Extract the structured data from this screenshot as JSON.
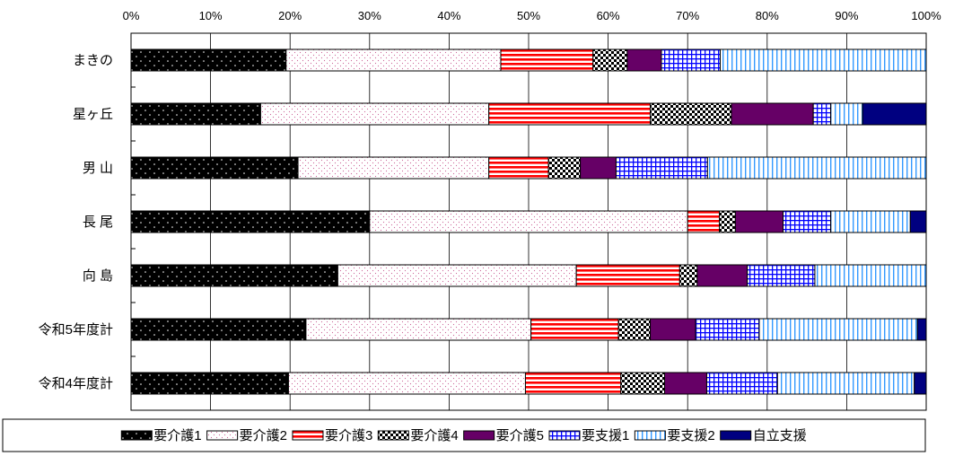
{
  "chart_data": {
    "type": "bar",
    "orientation": "horizontal",
    "stacked": "percent",
    "categories": [
      "まきの",
      "星ヶ丘",
      "男 山",
      "長 尾",
      "向 島",
      "令和5年度計",
      "令和4年度計"
    ],
    "x_ticks": [
      "0%",
      "10%",
      "20%",
      "30%",
      "40%",
      "50%",
      "60%",
      "70%",
      "80%",
      "90%",
      "100%"
    ],
    "xlim": [
      0,
      100
    ],
    "grid": true,
    "legend_position": "bottom",
    "series": [
      {
        "name": "要介護1",
        "pattern": "dots-on-black",
        "color": "#000000",
        "values": [
          19.5,
          16.3,
          21.0,
          30.0,
          26.0,
          22.0,
          19.8
        ]
      },
      {
        "name": "要介護2",
        "pattern": "fine-dots",
        "color": "#ffffff",
        "values": [
          27.0,
          28.7,
          24.0,
          40.0,
          30.0,
          28.3,
          29.8
        ]
      },
      {
        "name": "要介護3",
        "pattern": "horizontal-stripes",
        "color": "#ff0000",
        "values": [
          11.6,
          20.3,
          7.5,
          4.0,
          13.0,
          11.0,
          12.0
        ]
      },
      {
        "name": "要介護4",
        "pattern": "checker",
        "color": "#000000",
        "values": [
          4.3,
          10.2,
          4.0,
          2.0,
          2.2,
          4.0,
          5.5
        ]
      },
      {
        "name": "要介護5",
        "pattern": "solid",
        "color": "#660066",
        "values": [
          4.3,
          10.3,
          4.5,
          6.0,
          6.3,
          5.7,
          5.3
        ]
      },
      {
        "name": "要支援1",
        "pattern": "grid",
        "color": "#0000ff",
        "values": [
          7.4,
          2.2,
          11.5,
          6.0,
          8.5,
          8.0,
          8.9
        ]
      },
      {
        "name": "要支援2",
        "pattern": "vertical-stripes",
        "color": "#3399ff",
        "values": [
          25.9,
          4.0,
          27.5,
          10.0,
          14.0,
          19.9,
          17.2
        ]
      },
      {
        "name": "自立支援",
        "pattern": "solid",
        "color": "#000080",
        "values": [
          0,
          8.0,
          0,
          2.0,
          0,
          1.1,
          1.5
        ]
      }
    ]
  }
}
